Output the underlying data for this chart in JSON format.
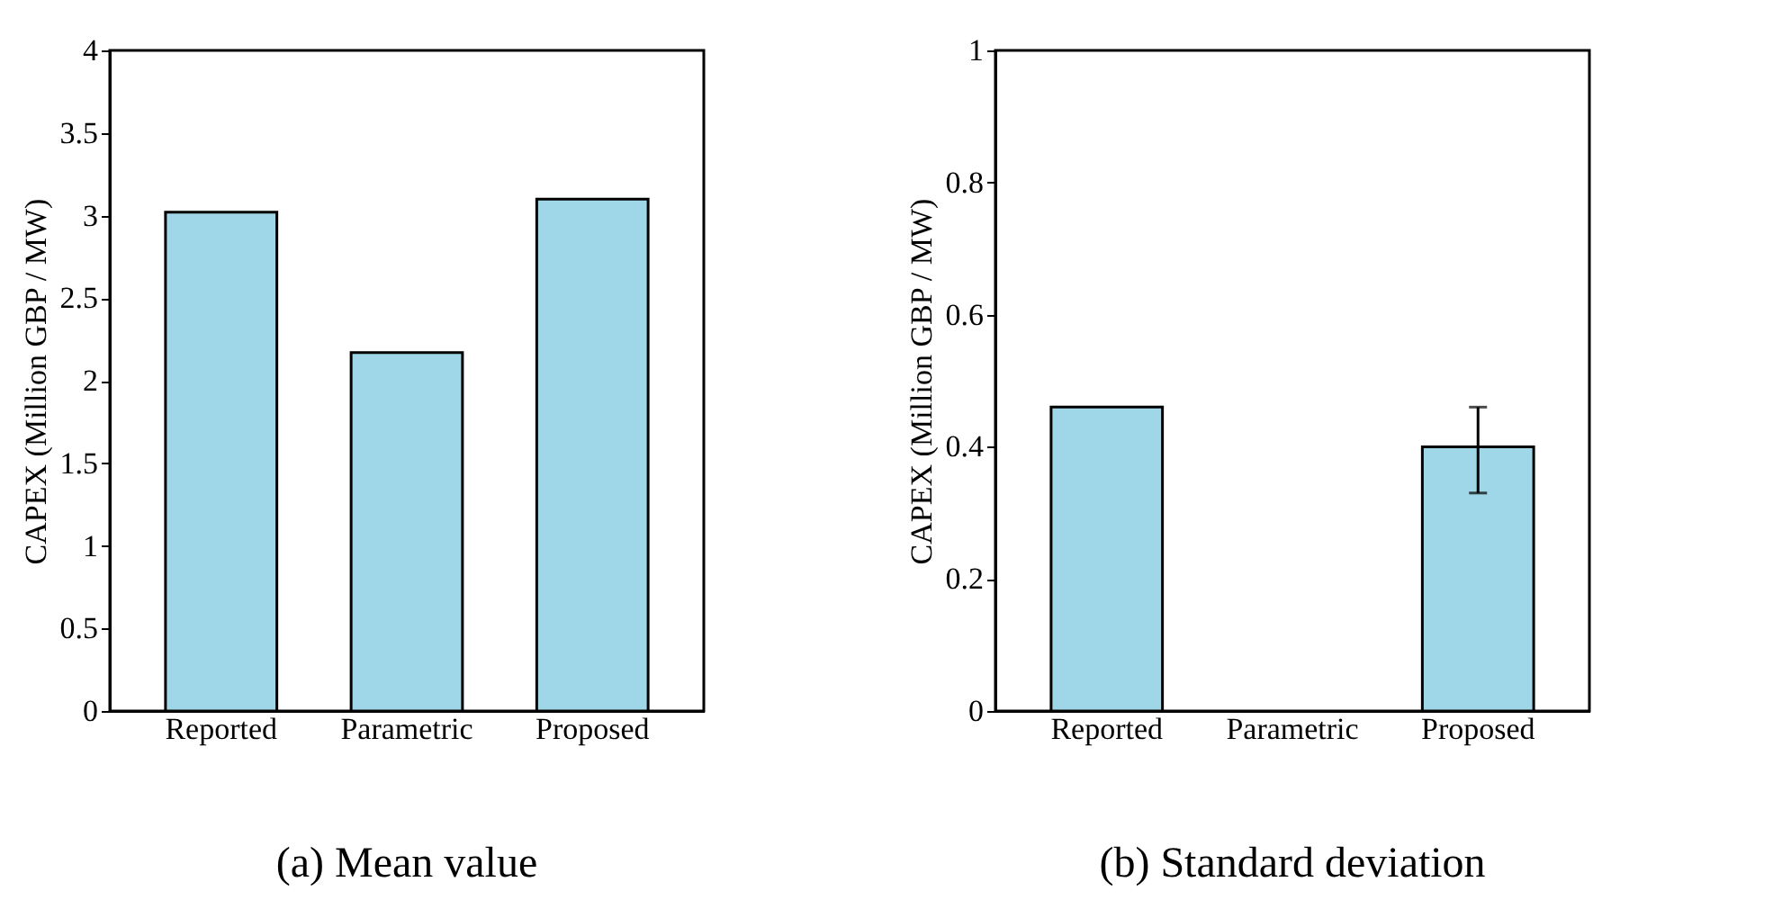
{
  "chart_data": [
    {
      "type": "bar",
      "title": "(a)    Mean value",
      "ylabel": "CAPEX (Million GBP / MW)",
      "categories": [
        "Reported",
        "Parametric",
        "Proposed"
      ],
      "values": [
        3.02,
        2.17,
        3.1
      ],
      "color": "#9fd6e8",
      "ylim": [
        0,
        4
      ],
      "yticks": [
        0,
        0.5,
        1,
        1.5,
        2,
        2.5,
        3,
        3.5,
        4
      ],
      "grid": false
    },
    {
      "type": "bar",
      "title": "(b)    Standard deviation",
      "ylabel": "CAPEX (Million GBP / MW)",
      "categories": [
        "Reported",
        "Parametric",
        "Proposed"
      ],
      "values": [
        0.46,
        null,
        0.4
      ],
      "errors": [
        null,
        null,
        [
          0.33,
          0.46
        ]
      ],
      "color": "#9fd6e8",
      "ylim": [
        0,
        1
      ],
      "yticks": [
        0,
        0.2,
        0.4,
        0.6,
        0.8,
        1
      ],
      "grid": false
    }
  ]
}
